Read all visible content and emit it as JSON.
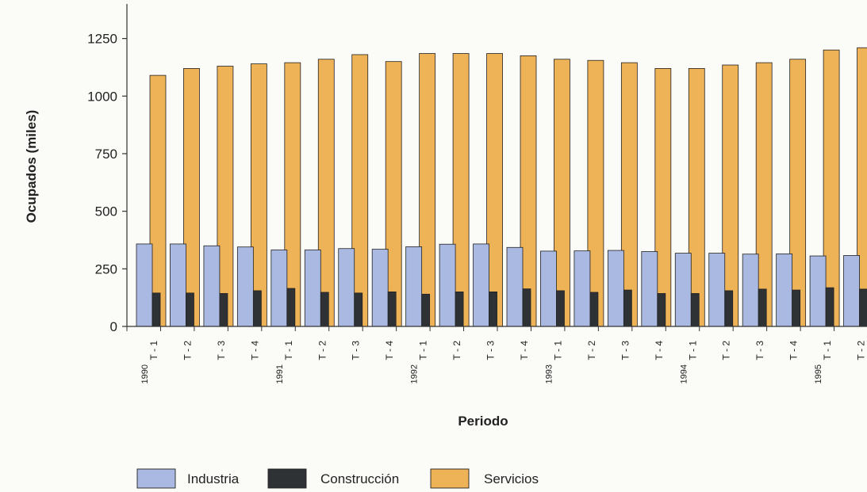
{
  "chart_data": {
    "type": "bar",
    "xlabel": "Periodo",
    "ylabel": "Ocupados (miles)",
    "ylim": [
      0,
      1400
    ],
    "yticks": [
      0,
      250,
      500,
      750,
      1000,
      1250
    ],
    "grid": false,
    "legend_position": "bottom",
    "categories": [
      {
        "year": "1990",
        "quarter": "T - 1"
      },
      {
        "year": "",
        "quarter": "T - 2"
      },
      {
        "year": "",
        "quarter": "T - 3"
      },
      {
        "year": "",
        "quarter": "T - 4"
      },
      {
        "year": "1991",
        "quarter": "T - 1"
      },
      {
        "year": "",
        "quarter": "T - 2"
      },
      {
        "year": "",
        "quarter": "T - 3"
      },
      {
        "year": "",
        "quarter": "T - 4"
      },
      {
        "year": "1992",
        "quarter": "T - 1"
      },
      {
        "year": "",
        "quarter": "T - 2"
      },
      {
        "year": "",
        "quarter": "T - 3"
      },
      {
        "year": "",
        "quarter": "T - 4"
      },
      {
        "year": "1993",
        "quarter": "T - 1"
      },
      {
        "year": "",
        "quarter": "T - 2"
      },
      {
        "year": "",
        "quarter": "T - 3"
      },
      {
        "year": "",
        "quarter": "T - 4"
      },
      {
        "year": "1994",
        "quarter": "T - 1"
      },
      {
        "year": "",
        "quarter": "T - 2"
      },
      {
        "year": "",
        "quarter": "T - 3"
      },
      {
        "year": "",
        "quarter": "T - 4"
      },
      {
        "year": "1995",
        "quarter": "T - 1"
      },
      {
        "year": "",
        "quarter": "T - 2"
      }
    ],
    "series": [
      {
        "name": "Industria",
        "color": "#a9b9e1",
        "values": [
          358,
          358,
          350,
          345,
          332,
          332,
          338,
          335,
          346,
          357,
          358,
          343,
          327,
          328,
          330,
          325,
          318,
          318,
          314,
          315,
          306,
          308
        ]
      },
      {
        "name": "Construcción",
        "color": "#2f3234",
        "values": [
          145,
          145,
          143,
          155,
          165,
          148,
          145,
          150,
          140,
          150,
          150,
          163,
          155,
          148,
          158,
          143,
          143,
          155,
          162,
          158,
          168,
          162
        ]
      },
      {
        "name": "Servicios",
        "color": "#eeb257",
        "values": [
          1090,
          1120,
          1130,
          1140,
          1145,
          1160,
          1180,
          1150,
          1185,
          1185,
          1185,
          1175,
          1160,
          1155,
          1145,
          1120,
          1120,
          1135,
          1145,
          1160,
          1200,
          1210
        ]
      }
    ]
  }
}
